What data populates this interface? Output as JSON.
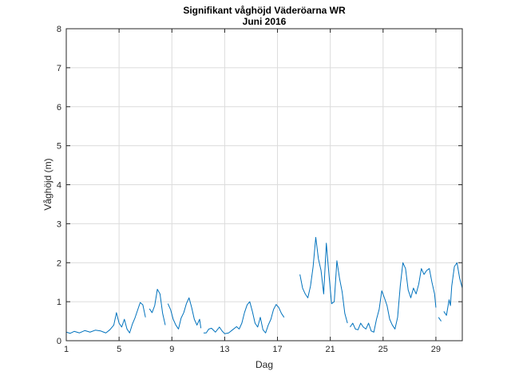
{
  "chart_data": {
    "type": "line",
    "title": "Signifikant våghöjd Väderöarna WR",
    "subtitle": "Juni 2016",
    "xlabel": "Dag",
    "ylabel": "Våghöjd (m)",
    "xlim": [
      1,
      31
    ],
    "ylim": [
      0,
      8
    ],
    "xticks": [
      1,
      5,
      9,
      13,
      17,
      21,
      25,
      29
    ],
    "yticks": [
      0,
      1,
      2,
      3,
      4,
      5,
      6,
      7,
      8
    ],
    "grid": true,
    "line_color": "#0072bd",
    "series": [
      {
        "segments": [
          [
            [
              1.0,
              0.22
            ],
            [
              1.3,
              0.19
            ],
            [
              1.6,
              0.24
            ],
            [
              2.0,
              0.2
            ],
            [
              2.4,
              0.26
            ],
            [
              2.8,
              0.22
            ],
            [
              3.2,
              0.27
            ],
            [
              3.6,
              0.25
            ],
            [
              4.0,
              0.2
            ],
            [
              4.3,
              0.28
            ],
            [
              4.6,
              0.4
            ],
            [
              4.8,
              0.72
            ],
            [
              5.0,
              0.45
            ],
            [
              5.2,
              0.35
            ],
            [
              5.4,
              0.55
            ],
            [
              5.6,
              0.3
            ],
            [
              5.8,
              0.2
            ],
            [
              6.0,
              0.42
            ],
            [
              6.2,
              0.58
            ],
            [
              6.4,
              0.78
            ],
            [
              6.6,
              0.98
            ],
            [
              6.8,
              0.92
            ],
            [
              7.0,
              0.6
            ]
          ],
          [
            [
              7.3,
              0.82
            ],
            [
              7.5,
              0.72
            ],
            [
              7.7,
              0.9
            ],
            [
              7.9,
              1.32
            ],
            [
              8.1,
              1.2
            ],
            [
              8.3,
              0.7
            ],
            [
              8.5,
              0.4
            ]
          ],
          [
            [
              8.7,
              0.95
            ],
            [
              8.9,
              0.8
            ],
            [
              9.1,
              0.55
            ],
            [
              9.3,
              0.4
            ],
            [
              9.5,
              0.3
            ],
            [
              9.7,
              0.58
            ],
            [
              9.9,
              0.72
            ],
            [
              10.1,
              0.95
            ],
            [
              10.3,
              1.1
            ],
            [
              10.5,
              0.85
            ],
            [
              10.7,
              0.55
            ],
            [
              10.9,
              0.4
            ],
            [
              11.1,
              0.55
            ],
            [
              11.2,
              0.32
            ]
          ],
          [
            [
              11.4,
              0.2
            ],
            [
              11.6,
              0.2
            ],
            [
              11.8,
              0.3
            ],
            [
              12.0,
              0.32
            ],
            [
              12.3,
              0.22
            ],
            [
              12.6,
              0.35
            ],
            [
              12.8,
              0.25
            ],
            [
              13.0,
              0.18
            ],
            [
              13.3,
              0.2
            ],
            [
              13.6,
              0.28
            ],
            [
              13.9,
              0.36
            ],
            [
              14.1,
              0.3
            ],
            [
              14.3,
              0.45
            ],
            [
              14.5,
              0.72
            ],
            [
              14.7,
              0.92
            ],
            [
              14.9,
              1.0
            ],
            [
              15.1,
              0.75
            ],
            [
              15.3,
              0.45
            ],
            [
              15.5,
              0.35
            ],
            [
              15.7,
              0.6
            ],
            [
              15.9,
              0.28
            ],
            [
              16.1,
              0.2
            ],
            [
              16.3,
              0.4
            ],
            [
              16.5,
              0.55
            ],
            [
              16.7,
              0.8
            ],
            [
              16.9,
              0.93
            ],
            [
              17.1,
              0.85
            ],
            [
              17.3,
              0.7
            ],
            [
              17.5,
              0.6
            ]
          ],
          [
            [
              18.7,
              1.7
            ],
            [
              18.9,
              1.35
            ],
            [
              19.1,
              1.2
            ],
            [
              19.3,
              1.1
            ],
            [
              19.5,
              1.4
            ],
            [
              19.7,
              1.9
            ],
            [
              19.9,
              2.65
            ],
            [
              20.1,
              2.1
            ],
            [
              20.3,
              1.8
            ],
            [
              20.5,
              1.2
            ],
            [
              20.7,
              2.5
            ],
            [
              20.9,
              1.7
            ],
            [
              21.1,
              0.95
            ],
            [
              21.3,
              1.0
            ],
            [
              21.5,
              2.05
            ],
            [
              21.7,
              1.6
            ],
            [
              21.9,
              1.25
            ],
            [
              22.1,
              0.7
            ],
            [
              22.3,
              0.45
            ]
          ],
          [
            [
              22.5,
              0.35
            ],
            [
              22.7,
              0.45
            ],
            [
              22.9,
              0.3
            ],
            [
              23.1,
              0.28
            ],
            [
              23.3,
              0.45
            ],
            [
              23.5,
              0.35
            ],
            [
              23.7,
              0.3
            ],
            [
              23.9,
              0.45
            ],
            [
              24.1,
              0.25
            ],
            [
              24.3,
              0.22
            ],
            [
              24.5,
              0.55
            ],
            [
              24.7,
              0.8
            ],
            [
              24.9,
              1.28
            ],
            [
              25.1,
              1.1
            ],
            [
              25.3,
              0.9
            ],
            [
              25.5,
              0.55
            ],
            [
              25.7,
              0.4
            ],
            [
              25.9,
              0.3
            ],
            [
              26.1,
              0.6
            ],
            [
              26.3,
              1.4
            ],
            [
              26.5,
              2.0
            ],
            [
              26.7,
              1.85
            ],
            [
              26.9,
              1.3
            ],
            [
              27.1,
              1.1
            ],
            [
              27.3,
              1.35
            ],
            [
              27.5,
              1.2
            ],
            [
              27.7,
              1.45
            ],
            [
              27.9,
              1.85
            ],
            [
              28.1,
              1.7
            ],
            [
              28.3,
              1.8
            ],
            [
              28.5,
              1.85
            ],
            [
              28.7,
              1.5
            ],
            [
              28.9,
              1.2
            ],
            [
              29.0,
              0.85
            ]
          ],
          [
            [
              29.2,
              0.6
            ],
            [
              29.4,
              0.5
            ]
          ],
          [
            [
              29.6,
              0.75
            ],
            [
              29.8,
              0.65
            ],
            [
              30.0,
              1.05
            ],
            [
              30.1,
              0.9
            ],
            [
              30.2,
              1.4
            ],
            [
              30.4,
              1.9
            ],
            [
              30.6,
              2.0
            ],
            [
              30.8,
              1.6
            ],
            [
              31.0,
              1.35
            ]
          ]
        ]
      }
    ]
  }
}
